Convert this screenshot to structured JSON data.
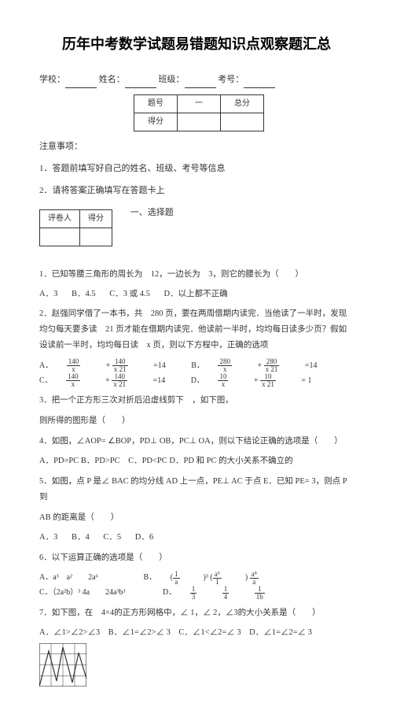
{
  "title": "历年中考数学试题易错题知识点观察题汇总",
  "header": {
    "school": "学校：",
    "name": "姓名：",
    "class": "班级：",
    "exam_no": "考号："
  },
  "score_table": {
    "r1c1": "题号",
    "r1c2": "一",
    "r1c3": "总分",
    "r2c1": "得分"
  },
  "notes_title": "注意事项：",
  "note1": "1．答题前填写好自己的姓名、班级、考号等信息",
  "note2": "2．请将答案正确填写在答题卡上",
  "eval_table": {
    "c1": "评卷人",
    "c2": "得分"
  },
  "section_heading": "一、选择题",
  "q1": "1．已知等腰三角形的周长为　12，一边长为　3，则它的腰长为（　　）",
  "q1_opts": {
    "a": "A．3",
    "b": "B．4.5",
    "c": "C．3 或 4.5",
    "d": "D．以上都不正确"
  },
  "q2": "2．赵强同学借了一本书，共　280 页，要在两周借期内读完．当他读了一半时，发现均匀每天要多读　21 页才能在借期内读完．他读前一半时，均均每日读多少页？假如设读前一半时，均均每日读　x 页，则以下方程中，正确的选项",
  "q2_opts": {
    "a_pre": "A．",
    "a_1": "140",
    "a_2": "140",
    "a_eq": "=14",
    "b_pre": "B．",
    "b_1": "280",
    "b_2": "280",
    "b_eq": "=14",
    "c_pre": "C．",
    "c_1": "140",
    "c_2": "140",
    "c_eq": "=14",
    "d_pre": "D．",
    "d_1": "10",
    "d_2": "10",
    "d_eq": "= 1",
    "dx1": "x",
    "dx2": "x  21",
    "dx2b": "x  21"
  },
  "q3": "3．把一个正方形三次对折后沿虚线剪下　，如下图，",
  "q3_2": "则所得的图形是（　　）",
  "q4": "4．如图，∠AOP= ∠BOP，PD⊥ OB，PC⊥ OA，则以下结论正确的选项是（　　）",
  "q4_opts": "A．PD=PC B．PD>PC　C．PD<PC D．PD 和 PC 的大小关系不确立的",
  "q5": "5．如图，点 P 是∠ BAC 的均分线 AD 上一点，PE⊥ AC 于点 E．已知 PE= 3，则点 P 到",
  "q5_2": "AB 的距离是（　　）",
  "q5_opts": {
    "a": "A．3",
    "b": "B．4",
    "c": "C．5",
    "d": "D．6"
  },
  "q6": "6．以下运算正确的选项是（　　）",
  "q6_optsA": {
    "a": "A．a³　a²　　2a⁶",
    "b_pre": "B．",
    "c_pre": "C．（2a²b）³ 4a　　24a³b³",
    "d_pre": "D．"
  },
  "q6_b_frac": {
    "n1": "1",
    "d1": "a",
    "n2": "a⁵",
    "d2": "1",
    "n3": "a⁸",
    "d3": "a"
  },
  "q6_d_frac": {
    "n1": "1",
    "n2": "1",
    "n3": "1",
    "d1": "3",
    "d2": "4",
    "d3": "1b"
  },
  "q7": "7．如下图，在　4×4的正方形网格中，∠ 1，∠ 2，∠3的大小关系是（　　）",
  "q7_opts": "A．∠1>∠2>∠3　B．∠1=∠2>∠ 3　C．∠1<∠2=∠ 3　D．∠1=∠2=∠ 3",
  "chart": {
    "type": "line",
    "width": 60,
    "height": 55,
    "grid": 4,
    "stroke": "#333333",
    "stroke_width": 1.2,
    "points": [
      [
        0,
        55
      ],
      [
        12,
        10
      ],
      [
        22,
        48
      ],
      [
        30,
        5
      ],
      [
        42,
        50
      ],
      [
        50,
        12
      ],
      [
        60,
        45
      ]
    ]
  }
}
